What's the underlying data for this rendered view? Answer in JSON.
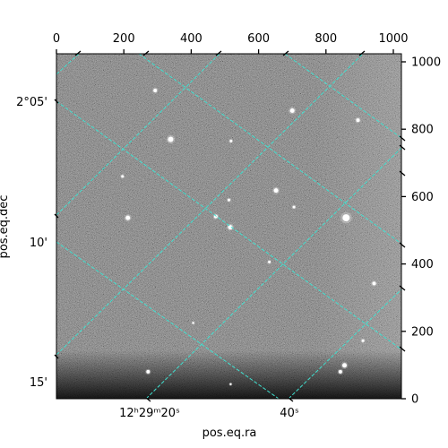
{
  "figure": {
    "xlabel": "pos.eq.ra",
    "ylabel": "pos.eq.dec",
    "pixel_x_ticks": [
      "0",
      "200",
      "400",
      "600",
      "800",
      "1000"
    ],
    "pixel_y_ticks": [
      "0",
      "200",
      "400",
      "600",
      "800",
      "1000"
    ],
    "ra_ticks": [
      "12ʰ29ᵐ20ˢ",
      "40ˢ"
    ],
    "dec_ticks": [
      "2°05'",
      "10'",
      "15'"
    ],
    "grid_color": "#40e0d0",
    "frame_color": "#000000"
  },
  "chart_data": {
    "type": "scatter",
    "xlabel": "pos.eq.ra",
    "ylabel": "pos.eq.dec",
    "xlim": [
      0,
      1024
    ],
    "ylim": [
      0,
      1024
    ],
    "grid": true,
    "points": [
      {
        "x": 293,
        "y": 915,
        "size": 2
      },
      {
        "x": 700,
        "y": 855,
        "size": 2.5
      },
      {
        "x": 895,
        "y": 827,
        "size": 2
      },
      {
        "x": 339,
        "y": 770,
        "size": 3
      },
      {
        "x": 518,
        "y": 765,
        "size": 1.5
      },
      {
        "x": 196,
        "y": 660,
        "size": 1.5
      },
      {
        "x": 652,
        "y": 618,
        "size": 2.5
      },
      {
        "x": 512,
        "y": 590,
        "size": 1.5
      },
      {
        "x": 705,
        "y": 569,
        "size": 1.5
      },
      {
        "x": 212,
        "y": 537,
        "size": 2.5
      },
      {
        "x": 473,
        "y": 541,
        "size": 2
      },
      {
        "x": 860,
        "y": 537,
        "size": 4
      },
      {
        "x": 516,
        "y": 509,
        "size": 2.5
      },
      {
        "x": 632,
        "y": 406,
        "size": 1.5
      },
      {
        "x": 943,
        "y": 342,
        "size": 2
      },
      {
        "x": 406,
        "y": 225,
        "size": 1.2
      },
      {
        "x": 910,
        "y": 172,
        "size": 1.5
      },
      {
        "x": 855,
        "y": 99,
        "size": 2.5
      },
      {
        "x": 843,
        "y": 80,
        "size": 2
      },
      {
        "x": 272,
        "y": 80,
        "size": 2
      },
      {
        "x": 517,
        "y": 43,
        "size": 1.2
      }
    ]
  }
}
